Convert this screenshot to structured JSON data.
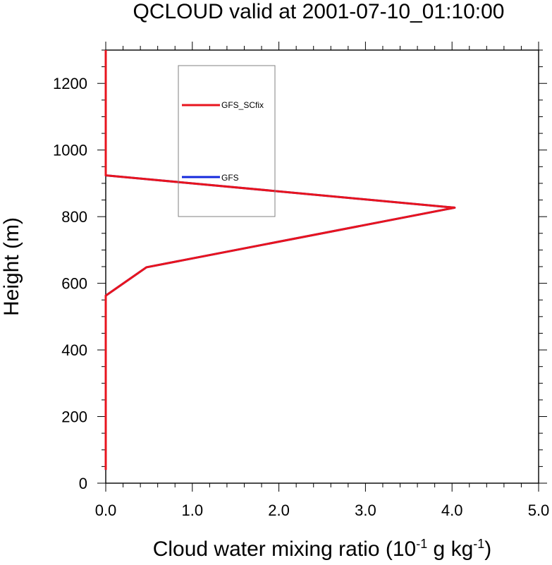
{
  "chart_data": {
    "type": "line",
    "title": "QCLOUD valid at 2001-07-10_01:10:00",
    "xlabel": {
      "prefix": "Cloud water mixing ratio (10",
      "exp1": "-1",
      "middle": " g kg",
      "exp2": "-1",
      "suffix": ")"
    },
    "ylabel": "Height (m)",
    "xlim": [
      0,
      5
    ],
    "ylim": [
      0,
      1300
    ],
    "xticks": [
      0,
      1,
      2,
      3,
      4,
      5
    ],
    "xtick_labels": [
      "0.0",
      "1.0",
      "2.0",
      "3.0",
      "4.0",
      "5.0"
    ],
    "yticks": [
      0,
      200,
      400,
      600,
      800,
      1000,
      1200
    ],
    "ytick_labels": [
      "0",
      "200",
      "400",
      "600",
      "800",
      "1000",
      "1200"
    ],
    "grid": false,
    "legend_position": "top-left",
    "series": [
      {
        "name": "GFS_SCfix",
        "color": "#e8141e",
        "x": [
          0.0,
          0.0,
          0.47,
          4.03,
          0.0,
          0.0
        ],
        "y": [
          40,
          563,
          648,
          827,
          924,
          1300
        ]
      },
      {
        "name": "GFS",
        "color": "#1428dc",
        "x": [
          0.0,
          0.0,
          0.47,
          4.03,
          0.0,
          0.0
        ],
        "y": [
          40,
          563,
          648,
          827,
          924,
          1300
        ]
      }
    ]
  }
}
